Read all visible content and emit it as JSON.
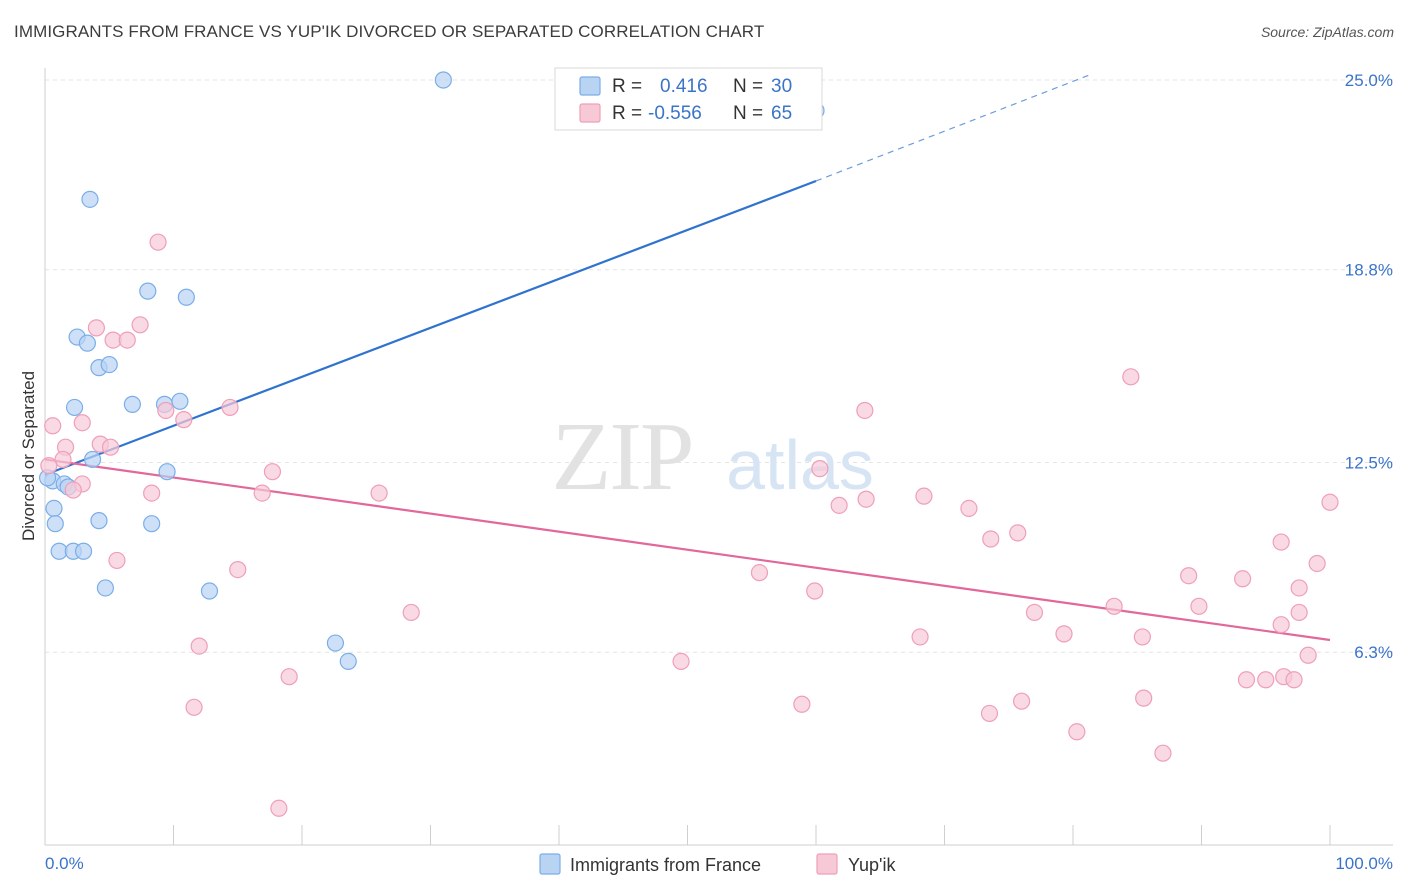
{
  "title": "IMMIGRANTS FROM FRANCE VS YUP'IK DIVORCED OR SEPARATED CORRELATION CHART",
  "source": "Source: ZipAtlas.com",
  "watermark": {
    "zip": "ZIP",
    "atlas": "atlas"
  },
  "chart_data": {
    "type": "scatter",
    "title": "IMMIGRANTS FROM FRANCE VS YUP'IK DIVORCED OR SEPARATED CORRELATION CHART",
    "ylabel": "Divorced or Separated",
    "xlabel": "",
    "xlim": [
      0,
      100
    ],
    "ylim": [
      0,
      25.0
    ],
    "x_tick_labels": {
      "left": "0.0%",
      "right": "100.0%"
    },
    "y_ticks": [
      {
        "value": 6.3,
        "label": "6.3%"
      },
      {
        "value": 12.5,
        "label": "12.5%"
      },
      {
        "value": 18.8,
        "label": "18.8%"
      },
      {
        "value": 25.0,
        "label": "25.0%"
      }
    ],
    "grid": true,
    "legend_position": "top-center",
    "series": [
      {
        "name": "Immigrants from France",
        "color": "#7aaee8",
        "fill": "#b9d3f3",
        "line_color": "#2f73d0",
        "R": "0.416",
        "N": "30",
        "trend": {
          "x0": 0,
          "y0": 12.1,
          "x1": 60,
          "y1": 21.7,
          "dash_x1": 81.5,
          "dash_y1": 25.2
        },
        "points": [
          [
            31,
            25.0
          ],
          [
            60,
            24.0
          ],
          [
            3.5,
            21.1
          ],
          [
            8,
            18.1
          ],
          [
            11,
            17.9
          ],
          [
            2.5,
            16.6
          ],
          [
            3.3,
            16.4
          ],
          [
            4.2,
            15.6
          ],
          [
            5,
            15.7
          ],
          [
            2.3,
            14.3
          ],
          [
            6.8,
            14.4
          ],
          [
            9.3,
            14.4
          ],
          [
            10.5,
            14.5
          ],
          [
            3.7,
            12.6
          ],
          [
            9.5,
            12.2
          ],
          [
            0.6,
            11.9
          ],
          [
            1.5,
            11.8
          ],
          [
            1.8,
            11.7
          ],
          [
            0.7,
            11.0
          ],
          [
            0.8,
            10.5
          ],
          [
            4.2,
            10.6
          ],
          [
            8.3,
            10.5
          ],
          [
            1.1,
            9.6
          ],
          [
            2.2,
            9.6
          ],
          [
            3.0,
            9.6
          ],
          [
            4.7,
            8.4
          ],
          [
            12.8,
            8.3
          ],
          [
            22.6,
            6.6
          ],
          [
            23.6,
            6.0
          ],
          [
            0.2,
            12.0
          ]
        ]
      },
      {
        "name": "Yup'ik",
        "color": "#ef9fb8",
        "fill": "#f7c9d7",
        "line_color": "#e2679a",
        "R": "-0.556",
        "N": "65",
        "trend": {
          "x0": 0,
          "y0": 12.6,
          "x1": 100,
          "y1": 6.7
        },
        "points": [
          [
            8.8,
            19.7
          ],
          [
            4,
            16.9
          ],
          [
            7.4,
            17.0
          ],
          [
            5.3,
            16.5
          ],
          [
            6.4,
            16.5
          ],
          [
            0.6,
            13.7
          ],
          [
            2.9,
            13.8
          ],
          [
            14.4,
            14.3
          ],
          [
            9.4,
            14.2
          ],
          [
            10.8,
            13.9
          ],
          [
            1.6,
            13.0
          ],
          [
            4.3,
            13.1
          ],
          [
            5.1,
            13.0
          ],
          [
            1.4,
            12.6
          ],
          [
            0.3,
            12.4
          ],
          [
            17.7,
            12.2
          ],
          [
            2.9,
            11.8
          ],
          [
            2.2,
            11.6
          ],
          [
            8.3,
            11.5
          ],
          [
            16.9,
            11.5
          ],
          [
            26,
            11.5
          ],
          [
            5.6,
            9.3
          ],
          [
            15,
            9.0
          ],
          [
            28.5,
            7.6
          ],
          [
            12,
            6.5
          ],
          [
            19,
            5.5
          ],
          [
            11.6,
            4.5
          ],
          [
            18.2,
            1.2
          ],
          [
            60.3,
            12.3
          ],
          [
            61.8,
            11.1
          ],
          [
            63.8,
            14.2
          ],
          [
            84.5,
            15.3
          ],
          [
            63.9,
            11.3
          ],
          [
            68.4,
            11.4
          ],
          [
            71.9,
            11.0
          ],
          [
            73.6,
            10.0
          ],
          [
            75.7,
            10.2
          ],
          [
            55.6,
            8.9
          ],
          [
            59.9,
            8.3
          ],
          [
            68.1,
            6.8
          ],
          [
            77,
            7.6
          ],
          [
            79.3,
            6.9
          ],
          [
            83.2,
            7.8
          ],
          [
            85.4,
            6.8
          ],
          [
            93.2,
            8.7
          ],
          [
            89.8,
            7.8
          ],
          [
            89,
            8.8
          ],
          [
            99,
            9.2
          ],
          [
            100,
            11.2
          ],
          [
            96.2,
            9.9
          ],
          [
            97.6,
            8.4
          ],
          [
            97.6,
            7.6
          ],
          [
            96.2,
            7.2
          ],
          [
            98.3,
            6.2
          ],
          [
            96.4,
            5.5
          ],
          [
            95,
            5.4
          ],
          [
            97.2,
            5.4
          ],
          [
            93.5,
            5.4
          ],
          [
            85.5,
            4.8
          ],
          [
            73.5,
            4.3
          ],
          [
            76,
            4.7
          ],
          [
            80.3,
            3.7
          ],
          [
            87,
            3.0
          ],
          [
            58.9,
            4.6
          ],
          [
            49.5,
            6.0
          ]
        ]
      }
    ]
  }
}
